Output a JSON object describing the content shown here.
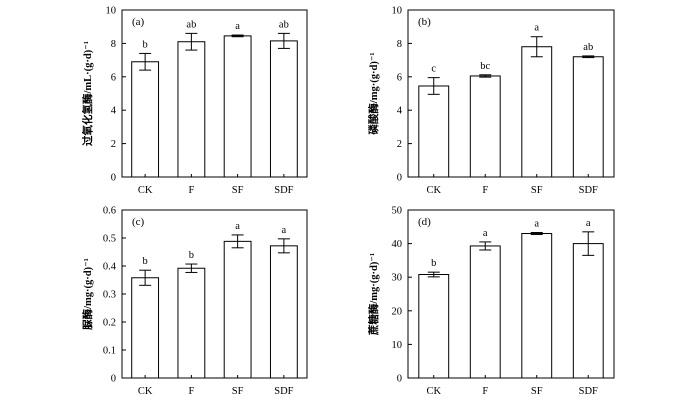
{
  "chart_data": [
    {
      "type": "bar",
      "panel_label": "(a)",
      "ylabel": "过氧化氢酶/mL·(g·d)⁻¹",
      "categories": [
        "CK",
        "F",
        "SF",
        "SDF"
      ],
      "values": [
        6.9,
        8.1,
        8.45,
        8.15
      ],
      "errors": [
        0.5,
        0.5,
        0.05,
        0.45
      ],
      "significance": [
        "b",
        "ab",
        "a",
        "ab"
      ],
      "ylim": [
        0,
        10
      ],
      "yticks": [
        "0",
        "2",
        "4",
        "6",
        "8",
        "10"
      ],
      "grid": false
    },
    {
      "type": "bar",
      "panel_label": "(b)",
      "ylabel": "磷酸酶/mg·(g·d)⁻¹",
      "categories": [
        "CK",
        "F",
        "SF",
        "SDF"
      ],
      "values": [
        5.45,
        6.05,
        7.8,
        7.2
      ],
      "errors": [
        0.5,
        0.07,
        0.6,
        0.05
      ],
      "significance": [
        "c",
        "bc",
        "a",
        "ab"
      ],
      "ylim": [
        0,
        10
      ],
      "yticks": [
        "0",
        "2",
        "4",
        "6",
        "8",
        "10"
      ],
      "grid": false
    },
    {
      "type": "bar",
      "panel_label": "(c)",
      "ylabel": "脲酶/mg·(g·d)⁻¹",
      "categories": [
        "CK",
        "F",
        "SF",
        "SDF"
      ],
      "values": [
        0.358,
        0.392,
        0.488,
        0.472
      ],
      "errors": [
        0.027,
        0.015,
        0.023,
        0.025
      ],
      "significance": [
        "b",
        "b",
        "a",
        "a"
      ],
      "ylim": [
        0,
        0.6
      ],
      "yticks": [
        "0",
        "0.1",
        "0.2",
        "0.3",
        "0.4",
        "0.5",
        "0.6"
      ],
      "grid": false
    },
    {
      "type": "bar",
      "panel_label": "(d)",
      "ylabel": "蔗糖酶/mg·(g·d)⁻¹",
      "categories": [
        "CK",
        "F",
        "SF",
        "SDF"
      ],
      "values": [
        30.8,
        39.3,
        43.0,
        40.0
      ],
      "errors": [
        0.7,
        1.2,
        0.3,
        3.5
      ],
      "significance": [
        "b",
        "a",
        "a",
        "a"
      ],
      "ylim": [
        0,
        50
      ],
      "yticks": [
        "0",
        "10",
        "20",
        "30",
        "40",
        "50"
      ],
      "grid": false
    }
  ]
}
